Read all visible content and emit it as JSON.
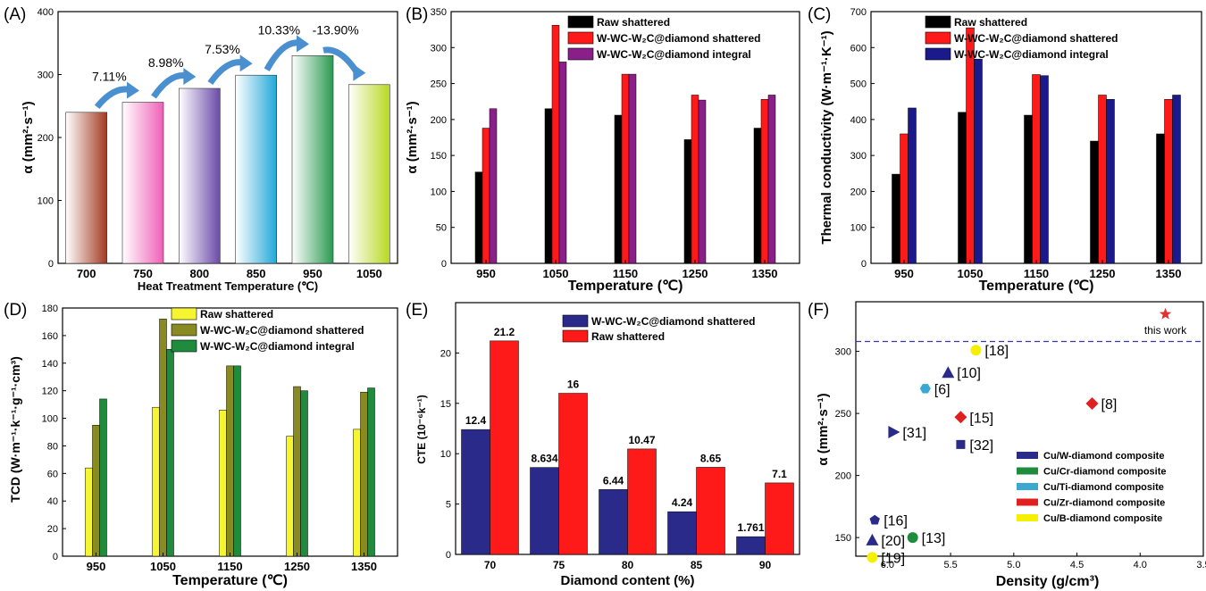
{
  "chart_data": [
    {
      "panel": "(A)",
      "type": "bar",
      "xlabel": "Heat Treatment Temperature (℃)",
      "ylabel": "α (mm²·s⁻¹)",
      "ylim": [
        0,
        400
      ],
      "yticks": [
        0,
        100,
        200,
        300,
        400
      ],
      "categories": [
        "700",
        "750",
        "800",
        "850",
        "950",
        "1050"
      ],
      "values": [
        240,
        256,
        278,
        299,
        330,
        284
      ],
      "colors": [
        "#a23a22",
        "#f060b8",
        "#6a4aa8",
        "#22a8d8",
        "#2a9a50",
        "#b8d820"
      ],
      "changes": [
        "7.11%",
        "8.98%",
        "7.53%",
        "10.33%",
        "-13.90%"
      ]
    },
    {
      "panel": "(B)",
      "type": "bar",
      "xlabel": "Temperature (℃)",
      "ylabel": "α (mm²·s⁻¹)",
      "ylim": [
        0,
        350
      ],
      "yticks": [
        0,
        50,
        100,
        150,
        200,
        250,
        300,
        350
      ],
      "categories": [
        "950",
        "1050",
        "1150",
        "1250",
        "1350"
      ],
      "series": [
        {
          "name": "Raw shattered",
          "color": "#000000",
          "values": [
            127,
            215,
            206,
            172,
            188
          ]
        },
        {
          "name": "W-WC-W₂C@diamond shattered",
          "color": "#ff1a1a",
          "values": [
            188,
            331,
            263,
            234,
            228
          ]
        },
        {
          "name": "W-WC-W₂C@diamond integral",
          "color": "#8a1f8a",
          "values": [
            215,
            280,
            263,
            227,
            234
          ]
        }
      ]
    },
    {
      "panel": "(C)",
      "type": "bar",
      "xlabel": "Temperature (℃)",
      "ylabel": "Thermal conductivity (W·m⁻¹·K⁻¹)",
      "ylim": [
        0,
        700
      ],
      "yticks": [
        0,
        100,
        200,
        300,
        400,
        500,
        600,
        700
      ],
      "categories": [
        "950",
        "1050",
        "1150",
        "1250",
        "1350"
      ],
      "series": [
        {
          "name": "Raw shattered",
          "color": "#000000",
          "values": [
            248,
            420,
            412,
            340,
            360
          ]
        },
        {
          "name": "W-WC-W₂C@diamond shattered",
          "color": "#ff1a1a",
          "values": [
            360,
            655,
            525,
            468,
            456
          ]
        },
        {
          "name": "W-WC-W₂C@diamond integral",
          "color": "#1a1a8c",
          "values": [
            432,
            568,
            522,
            456,
            468
          ]
        }
      ]
    },
    {
      "panel": "(D)",
      "type": "bar",
      "xlabel": "Temperature (℃)",
      "ylabel": "TCD (W·m⁻¹·k⁻¹·g⁻¹·cm³)",
      "ylim": [
        0,
        180
      ],
      "yticks": [
        0,
        20,
        40,
        60,
        80,
        100,
        120,
        140,
        160,
        180
      ],
      "categories": [
        "950",
        "1050",
        "1150",
        "1250",
        "1350"
      ],
      "series": [
        {
          "name": "Raw shattered",
          "color": "#f5f532",
          "values": [
            64,
            108,
            106,
            87,
            92
          ]
        },
        {
          "name": "W-WC-W₂C@diamond shattered",
          "color": "#8a8a22",
          "values": [
            95,
            172,
            138,
            123,
            119
          ]
        },
        {
          "name": "W-WC-W₂C@diamond integral",
          "color": "#1e8c3c",
          "values": [
            114,
            150,
            138,
            120,
            122
          ]
        }
      ]
    },
    {
      "panel": "(E)",
      "type": "bar",
      "xlabel": "Diamond content (%)",
      "ylabel": "CTE (10⁻⁶k⁻¹)",
      "ylim": [
        0,
        25
      ],
      "yticks": [
        0,
        5,
        10,
        15,
        20
      ],
      "categories": [
        "70",
        "75",
        "80",
        "85",
        "90"
      ],
      "series": [
        {
          "name": "W-WC-W₂C@diamond shattered",
          "color": "#2a2a8a",
          "values": [
            12.4,
            8.634,
            6.44,
            4.24,
            1.761
          ],
          "labels": [
            "12.4",
            "8.634",
            "6.44",
            "4.24",
            "1.761"
          ]
        },
        {
          "name": "Raw shattered",
          "color": "#ff1a1a",
          "values": [
            21.2,
            16,
            10.47,
            8.65,
            7.1
          ],
          "labels": [
            "21.2",
            "16",
            "10.47",
            "8.65",
            "7.1"
          ]
        }
      ]
    },
    {
      "panel": "(F)",
      "type": "scatter",
      "xlabel": "Density  (g/cm³)",
      "ylabel": "α (mm²·s⁻¹)",
      "xlim": [
        6.25,
        3.5
      ],
      "ylim": [
        135,
        340
      ],
      "xticks": [
        "6.0",
        "5.5",
        "5.0",
        "4.5",
        "4.0",
        "3.5"
      ],
      "yticks": [
        150,
        200,
        250,
        300
      ],
      "reference_line": 308,
      "points": [
        {
          "label": "this work",
          "x": 3.8,
          "y": 330,
          "marker": "star",
          "color": "#e53030"
        },
        {
          "label": "[18]",
          "x": 5.3,
          "y": 301,
          "marker": "circle",
          "color": "#f5f000"
        },
        {
          "label": "[10]",
          "x": 5.52,
          "y": 283,
          "marker": "triangle-up",
          "color": "#2a2a8a"
        },
        {
          "label": "[6]",
          "x": 5.7,
          "y": 270,
          "marker": "hexagon",
          "color": "#3aa8d0"
        },
        {
          "label": "[8]",
          "x": 4.38,
          "y": 258,
          "marker": "diamond",
          "color": "#e02020"
        },
        {
          "label": "[15]",
          "x": 5.42,
          "y": 247,
          "marker": "diamond",
          "color": "#e02020"
        },
        {
          "label": "[31]",
          "x": 5.95,
          "y": 235,
          "marker": "triangle-right",
          "color": "#2a2a8a"
        },
        {
          "label": "[32]",
          "x": 5.42,
          "y": 225,
          "marker": "square",
          "color": "#2a2a8a"
        },
        {
          "label": "[16]",
          "x": 6.1,
          "y": 164,
          "marker": "pentagon",
          "color": "#2a2a8a"
        },
        {
          "label": "[13]",
          "x": 5.8,
          "y": 150,
          "marker": "circle",
          "color": "#1e8c3c"
        },
        {
          "label": "[20]",
          "x": 6.12,
          "y": 148,
          "marker": "triangle-up",
          "color": "#2a2a8a"
        },
        {
          "label": "[19]",
          "x": 6.12,
          "y": 134,
          "marker": "circle",
          "color": "#f5f000"
        }
      ],
      "legend": [
        {
          "name": "Cu/W-diamond  composite",
          "color": "#2a2a8a"
        },
        {
          "name": "Cu/Cr-diamond  composite",
          "color": "#1e8c3c"
        },
        {
          "name": "Cu/Ti-diamond  composite",
          "color": "#3aa8d0"
        },
        {
          "name": "Cu/Zr-diamond  composite",
          "color": "#e02020"
        },
        {
          "name": "Cu/B-diamond  composite",
          "color": "#f5f000"
        }
      ]
    }
  ]
}
